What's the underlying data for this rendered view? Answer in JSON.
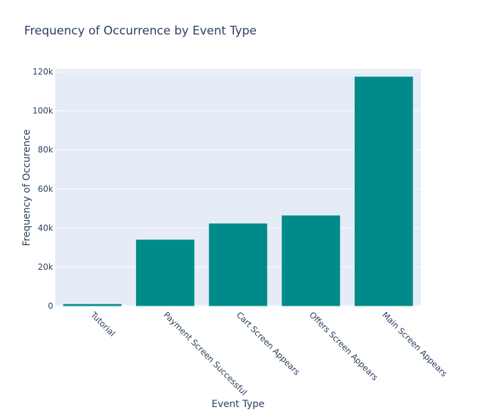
{
  "chart_data": {
    "type": "bar",
    "title": "Frequency of Occurrence by Event Type",
    "xlabel": "Event Type",
    "ylabel": "Frequency of Occurence",
    "categories": [
      "Tutorial",
      "Payment Screen Successful",
      "Cart Screen Appears",
      "Offers Screen Appears",
      "Main Screen Appears"
    ],
    "values": [
      1000,
      34000,
      42300,
      46400,
      117500
    ],
    "ylim": [
      0,
      122500
    ],
    "yticks": [
      0,
      20000,
      40000,
      60000,
      80000,
      100000,
      120000
    ],
    "ytick_labels": [
      "0",
      "20k",
      "40k",
      "60k",
      "80k",
      "100k",
      "120k"
    ],
    "grid": true,
    "colors": {
      "bar": "#008b8b",
      "plot_bg": "#e5ecf6",
      "grid": "#ffffff",
      "text": "#2a3f5f"
    }
  }
}
